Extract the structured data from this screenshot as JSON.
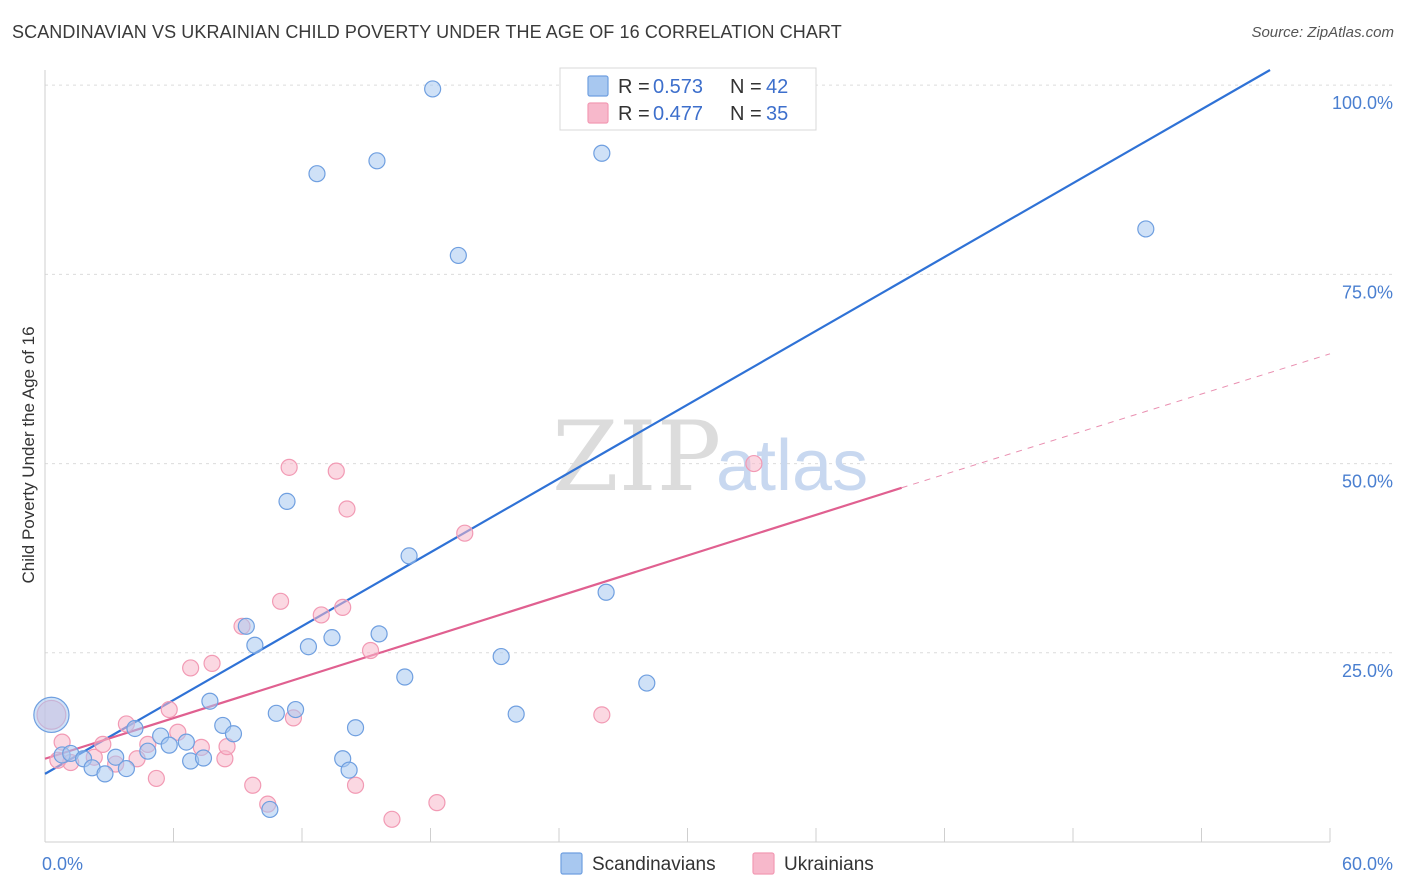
{
  "header": {
    "title": "SCANDINAVIAN VS UKRAINIAN CHILD POVERTY UNDER THE AGE OF 16 CORRELATION CHART",
    "source": "Source: ZipAtlas.com"
  },
  "watermark": {
    "zip": "ZIP",
    "atlas": "atlas"
  },
  "legend": {
    "items": [
      {
        "r_label": "R =",
        "r_value": "0.573",
        "n_label": "N =",
        "n_value": "42",
        "color": "#a8c8f0"
      },
      {
        "r_label": "R =",
        "r_value": "0.477",
        "n_label": "N =",
        "n_value": "35",
        "color": "#f7b8cb"
      }
    ]
  },
  "chart_data": {
    "type": "scatter",
    "title": "SCANDINAVIAN VS UKRAINIAN CHILD POVERTY UNDER THE AGE OF 16 CORRELATION CHART",
    "xlabel": "",
    "ylabel": "Child Poverty Under the Age of 16",
    "xlim": [
      0,
      60
    ],
    "ylim": [
      0,
      102
    ],
    "x_tick_labels": [
      "0.0%",
      "60.0%"
    ],
    "y_ticks": [
      25,
      50,
      75,
      100
    ],
    "y_tick_labels": [
      "25.0%",
      "50.0%",
      "75.0%",
      "100.0%"
    ],
    "grid": true,
    "series": [
      {
        "name": "Scandinavians",
        "color": "#6f9fe0",
        "fill": "#a8c8f0",
        "trend_color": "#2f72d6",
        "trend": {
          "x0": 0,
          "y0": 9,
          "x1": 57.2,
          "y1": 102,
          "dashed_to": null
        },
        "points": [
          [
            0.3,
            16.8,
            2.2
          ],
          [
            0.8,
            11.5,
            1
          ],
          [
            1.2,
            11.7,
            1
          ],
          [
            1.8,
            11.0,
            1
          ],
          [
            2.2,
            9.8,
            1
          ],
          [
            2.8,
            9.0,
            1
          ],
          [
            3.3,
            11.2,
            1
          ],
          [
            3.8,
            9.7,
            1
          ],
          [
            4.2,
            15.0,
            1
          ],
          [
            4.8,
            12.0,
            1
          ],
          [
            5.4,
            14.0,
            1
          ],
          [
            5.8,
            12.8,
            1
          ],
          [
            6.6,
            13.2,
            1
          ],
          [
            6.8,
            10.7,
            1
          ],
          [
            7.4,
            11.1,
            1
          ],
          [
            7.7,
            18.6,
            1
          ],
          [
            8.3,
            15.4,
            1
          ],
          [
            8.8,
            14.3,
            1
          ],
          [
            9.4,
            28.5,
            1
          ],
          [
            9.8,
            26.0,
            1
          ],
          [
            10.5,
            4.3,
            1
          ],
          [
            10.8,
            17.0,
            1
          ],
          [
            11.3,
            45.0,
            1
          ],
          [
            11.7,
            17.5,
            1
          ],
          [
            12.3,
            25.8,
            1
          ],
          [
            12.7,
            88.3,
            1
          ],
          [
            13.4,
            27.0,
            1
          ],
          [
            13.9,
            11.0,
            1
          ],
          [
            14.2,
            9.5,
            1
          ],
          [
            14.5,
            15.1,
            1
          ],
          [
            15.5,
            90.0,
            1
          ],
          [
            15.6,
            27.5,
            1
          ],
          [
            16.8,
            21.8,
            1
          ],
          [
            17.0,
            37.8,
            1
          ],
          [
            18.1,
            99.5,
            1
          ],
          [
            19.3,
            77.5,
            1
          ],
          [
            21.3,
            24.5,
            1
          ],
          [
            22.0,
            16.9,
            1
          ],
          [
            26.0,
            91.0,
            1
          ],
          [
            26.2,
            33.0,
            1
          ],
          [
            28.1,
            21.0,
            1
          ],
          [
            51.4,
            81.0,
            1
          ]
        ]
      },
      {
        "name": "Ukrainians",
        "color": "#f29ab4",
        "fill": "#f7b8cb",
        "trend_color": "#e06090",
        "trend": {
          "x0": 0,
          "y0": 11,
          "x1": 40.0,
          "y1": 46.8,
          "dashed_to": [
            60,
            64.5
          ]
        },
        "points": [
          [
            0.3,
            16.8,
            1.8
          ],
          [
            0.8,
            13.2,
            1
          ],
          [
            1.2,
            10.5,
            1
          ],
          [
            2.3,
            11.2,
            1
          ],
          [
            2.7,
            12.9,
            1
          ],
          [
            3.3,
            10.3,
            1
          ],
          [
            3.8,
            15.6,
            1
          ],
          [
            4.3,
            11.0,
            1
          ],
          [
            4.8,
            12.9,
            1
          ],
          [
            5.2,
            8.4,
            1
          ],
          [
            5.8,
            17.5,
            1
          ],
          [
            6.2,
            14.5,
            1
          ],
          [
            6.8,
            23.0,
            1
          ],
          [
            7.3,
            12.5,
            1
          ],
          [
            7.8,
            23.6,
            1
          ],
          [
            8.4,
            11.0,
            1
          ],
          [
            8.5,
            12.6,
            1
          ],
          [
            9.2,
            28.5,
            1
          ],
          [
            9.7,
            7.5,
            1
          ],
          [
            10.4,
            5.0,
            1
          ],
          [
            11.0,
            31.8,
            1
          ],
          [
            11.4,
            49.5,
            1
          ],
          [
            11.6,
            16.4,
            1
          ],
          [
            12.9,
            30.0,
            1
          ],
          [
            13.6,
            49.0,
            1
          ],
          [
            13.9,
            31.0,
            1
          ],
          [
            14.1,
            44.0,
            1
          ],
          [
            14.5,
            7.5,
            1
          ],
          [
            15.2,
            25.3,
            1
          ],
          [
            16.2,
            3.0,
            1
          ],
          [
            18.3,
            5.2,
            1
          ],
          [
            19.6,
            40.8,
            1
          ],
          [
            26.0,
            16.8,
            1
          ],
          [
            33.1,
            50.0,
            1
          ],
          [
            0.6,
            10.8,
            1
          ]
        ]
      }
    ]
  },
  "bottom_legend": [
    "Scandinavians",
    "Ukrainians"
  ]
}
